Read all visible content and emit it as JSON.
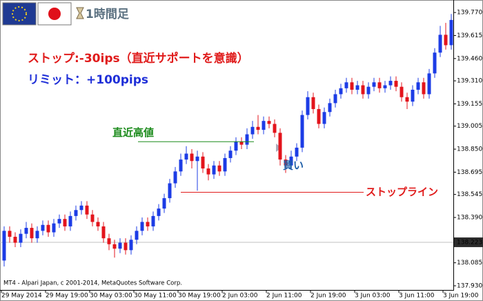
{
  "timeframe": "1時間足",
  "footer": "MT4 - Alpari Japan, c 2001-2014, MetaQuotes Software Corp.",
  "chart_data": {
    "type": "candlestick",
    "notes": [
      {
        "text": "ストップ:-30ips（直近サポートを意識）",
        "color": "#e01b1b"
      },
      {
        "text": "リミット：+100pips",
        "color": "#1f2fd8"
      }
    ],
    "annotations": [
      {
        "text": "直近高値",
        "value": 138.9,
        "color": "#1a8a1a"
      },
      {
        "text": "ストップライン",
        "value": 138.56,
        "color": "#e01b1b"
      }
    ],
    "buy_label": "買い",
    "up_color": "#1c3ce6",
    "down_color": "#e3141c",
    "price_line": 138.223,
    "grid": false,
    "categories": [
      "29 May 2014",
      null,
      null,
      null,
      null,
      null,
      null,
      null,
      "29 May 19:00",
      null,
      null,
      null,
      null,
      null,
      null,
      null,
      "30 May 03:00",
      null,
      null,
      null,
      null,
      null,
      null,
      null,
      "30 May 11:00",
      null,
      null,
      null,
      null,
      null,
      null,
      null,
      "30 May 19:00",
      null,
      null,
      null,
      null,
      null,
      null,
      null,
      "2 Jun 03:00",
      null,
      null,
      null,
      null,
      null,
      null,
      null,
      "2 Jun 11:00",
      null,
      null,
      null,
      null,
      null,
      null,
      null,
      "2 Jun 19:00",
      null,
      null,
      null,
      null,
      null,
      null,
      null,
      "3 Jun 03:00",
      null,
      null,
      null,
      null,
      null,
      null,
      null,
      "3 Jun 11:00",
      null,
      null,
      null,
      null,
      null,
      null,
      null,
      "3 Jun 19:00",
      null
    ],
    "open": [
      138.1,
      138.3,
      138.26,
      138.22,
      138.28,
      138.32,
      138.25,
      138.3,
      138.34,
      138.29,
      138.35,
      138.38,
      138.33,
      138.4,
      138.44,
      138.47,
      138.41,
      138.36,
      138.33,
      138.25,
      138.21,
      138.18,
      138.22,
      138.17,
      138.24,
      138.3,
      138.36,
      138.33,
      138.4,
      138.45,
      138.52,
      138.62,
      138.7,
      138.78,
      138.82,
      138.77,
      138.8,
      138.72,
      138.68,
      138.74,
      138.7,
      138.79,
      138.84,
      138.9,
      138.88,
      138.95,
      139.0,
      138.98,
      139.04,
      139.02,
      138.96,
      138.78,
      138.74,
      138.8,
      138.86,
      139.08,
      139.2,
      139.12,
      139.02,
      139.1,
      139.16,
      139.22,
      139.26,
      139.3,
      139.25,
      139.28,
      139.22,
      139.27,
      139.3,
      139.26,
      139.28,
      139.31,
      139.27,
      139.2,
      139.17,
      139.25,
      139.3,
      139.22,
      139.36,
      139.5,
      139.62,
      139.55
    ],
    "high": [
      138.33,
      138.33,
      138.29,
      138.31,
      138.36,
      138.35,
      138.33,
      138.37,
      138.37,
      138.38,
      138.41,
      138.41,
      138.43,
      138.47,
      138.5,
      138.5,
      138.44,
      138.39,
      138.36,
      138.28,
      138.24,
      138.25,
      138.25,
      138.27,
      138.33,
      138.39,
      138.39,
      138.43,
      138.48,
      138.55,
      138.65,
      138.73,
      138.82,
      138.87,
      138.85,
      138.84,
      138.83,
      138.75,
      138.77,
      138.77,
      138.82,
      138.87,
      138.93,
      138.93,
      138.99,
      139.04,
      139.08,
      139.07,
      139.07,
      139.05,
      138.99,
      138.81,
      138.84,
      138.89,
      139.11,
      139.24,
      139.23,
      139.15,
      139.13,
      139.19,
      139.25,
      139.29,
      139.33,
      139.33,
      139.31,
      139.31,
      139.3,
      139.33,
      139.33,
      139.31,
      139.34,
      139.34,
      139.3,
      139.23,
      139.28,
      139.33,
      139.33,
      139.39,
      139.53,
      139.68,
      139.7,
      139.76
    ],
    "low": [
      138.06,
      138.22,
      138.19,
      138.19,
      138.25,
      138.22,
      138.22,
      138.27,
      138.26,
      138.26,
      138.32,
      138.3,
      138.3,
      138.37,
      138.41,
      138.38,
      138.33,
      138.3,
      138.22,
      138.17,
      138.12,
      138.15,
      138.14,
      138.14,
      138.21,
      138.27,
      138.3,
      138.3,
      138.37,
      138.42,
      138.49,
      138.59,
      138.67,
      138.75,
      138.72,
      138.57,
      138.69,
      138.64,
      138.65,
      138.67,
      138.67,
      138.76,
      138.81,
      138.85,
      138.85,
      138.92,
      138.95,
      138.95,
      138.99,
      138.93,
      138.74,
      138.69,
      138.71,
      138.77,
      138.83,
      139.05,
      139.09,
      138.99,
      138.99,
      139.07,
      139.13,
      139.19,
      139.23,
      139.22,
      139.22,
      139.19,
      139.19,
      139.24,
      139.23,
      139.23,
      139.25,
      139.24,
      139.17,
      139.12,
      139.14,
      139.22,
      139.19,
      139.19,
      139.33,
      139.47,
      139.52,
      139.52
    ],
    "close": [
      138.3,
      138.26,
      138.22,
      138.28,
      138.32,
      138.25,
      138.3,
      138.34,
      138.29,
      138.35,
      138.38,
      138.33,
      138.4,
      138.44,
      138.47,
      138.41,
      138.36,
      138.33,
      138.25,
      138.21,
      138.18,
      138.22,
      138.17,
      138.24,
      138.3,
      138.36,
      138.33,
      138.4,
      138.45,
      138.52,
      138.62,
      138.7,
      138.78,
      138.82,
      138.77,
      138.8,
      138.72,
      138.68,
      138.74,
      138.7,
      138.79,
      138.84,
      138.9,
      138.88,
      138.95,
      139.0,
      138.98,
      139.04,
      139.02,
      138.96,
      138.78,
      138.74,
      138.8,
      138.86,
      139.08,
      139.2,
      139.12,
      139.02,
      139.1,
      139.16,
      139.22,
      139.26,
      139.3,
      139.25,
      139.28,
      139.22,
      139.27,
      139.3,
      139.26,
      139.28,
      139.31,
      139.27,
      139.2,
      139.17,
      139.25,
      139.3,
      139.22,
      139.36,
      139.5,
      139.62,
      139.55,
      139.72
    ],
    "ylim": [
      137.902,
      139.831
    ],
    "yticks": [
      {
        "value": 139.77,
        "label": "139.770"
      },
      139.615,
      {
        "value": 139.46,
        "label": "139.460"
      },
      {
        "value": 139.31,
        "label": "139.310"
      },
      139.155,
      139.005,
      {
        "value": 138.85,
        "label": "138.850"
      },
      138.695,
      138.545,
      {
        "value": 138.39,
        "label": "138.390"
      },
      138.085,
      {
        "value": 137.93,
        "label": "137.930"
      }
    ]
  }
}
